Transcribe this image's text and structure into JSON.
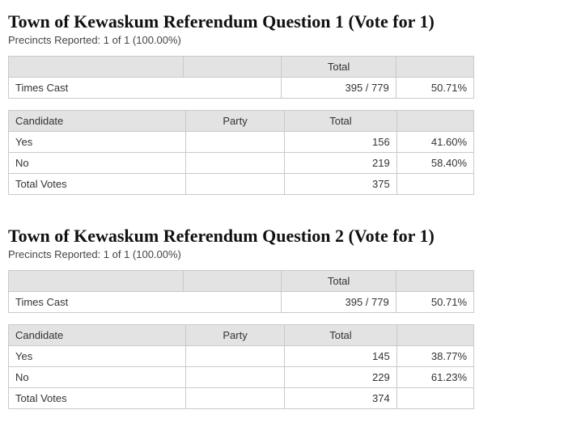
{
  "questions": [
    {
      "title": "Town of Kewaskum Referendum Question 1 (Vote for  1)",
      "precincts": "Precincts Reported: 1 of 1 (100.00%)",
      "cast": {
        "header_total": "Total",
        "row_label": "Times Cast",
        "value": "395 / 779",
        "pct": "50.71%"
      },
      "results": {
        "headers": {
          "candidate": "Candidate",
          "party": "Party",
          "total": "Total"
        },
        "rows": [
          {
            "label": "Yes",
            "party": "",
            "total": "156",
            "pct": "41.60%"
          },
          {
            "label": "No",
            "party": "",
            "total": "219",
            "pct": "58.40%"
          }
        ],
        "totals": {
          "label": "Total Votes",
          "total": "375",
          "pct": ""
        }
      }
    },
    {
      "title": "Town of Kewaskum Referendum Question 2 (Vote for  1)",
      "precincts": "Precincts Reported: 1 of 1 (100.00%)",
      "cast": {
        "header_total": "Total",
        "row_label": "Times Cast",
        "value": "395 / 779",
        "pct": "50.71%"
      },
      "results": {
        "headers": {
          "candidate": "Candidate",
          "party": "Party",
          "total": "Total"
        },
        "rows": [
          {
            "label": "Yes",
            "party": "",
            "total": "145",
            "pct": "38.77%"
          },
          {
            "label": "No",
            "party": "",
            "total": "229",
            "pct": "61.23%"
          }
        ],
        "totals": {
          "label": "Total Votes",
          "total": "374",
          "pct": ""
        }
      }
    }
  ]
}
